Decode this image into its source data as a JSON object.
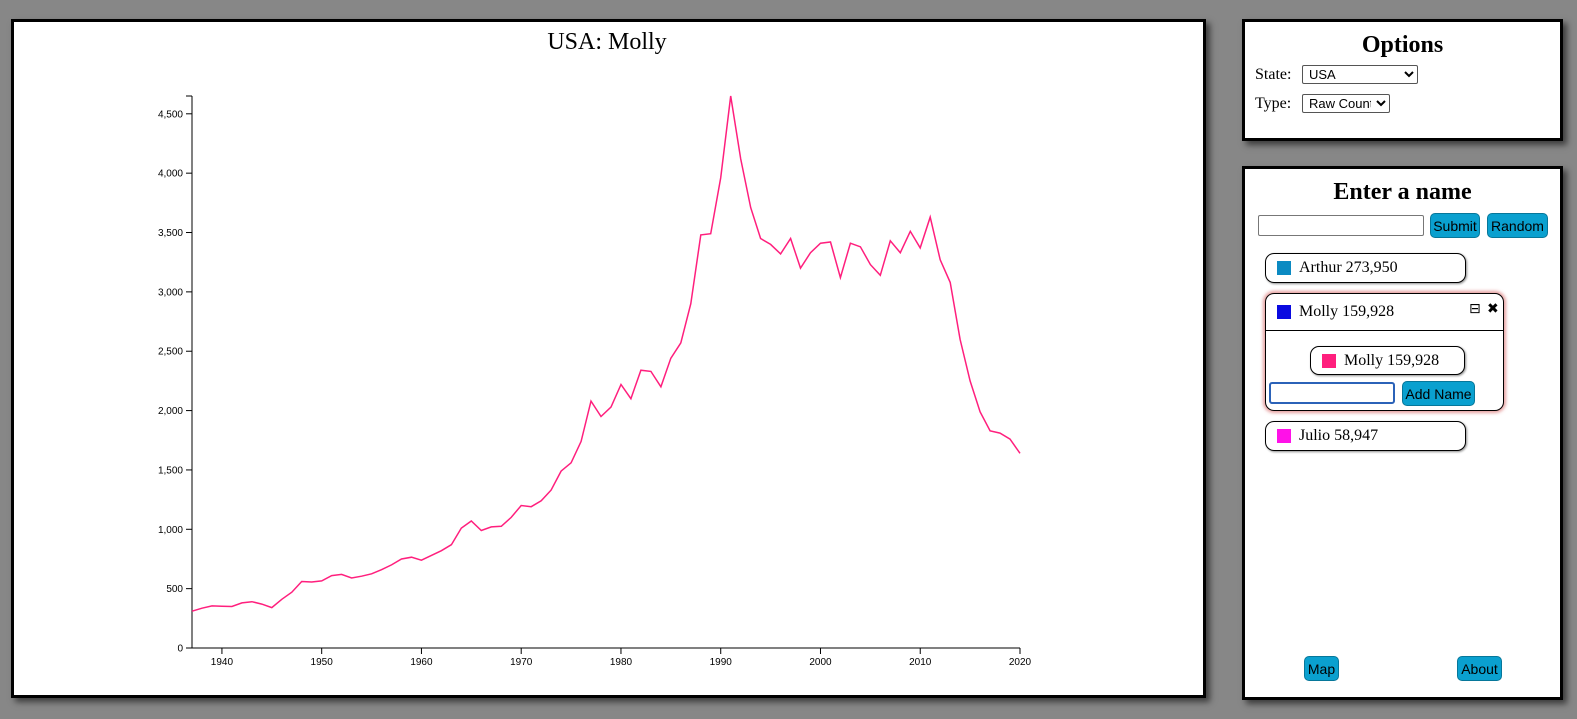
{
  "chart_data": {
    "type": "line",
    "title": "USA: Molly",
    "xlabel": "",
    "ylabel": "",
    "xlim": [
      1937,
      2020
    ],
    "ylim": [
      0,
      4650
    ],
    "x_ticks": [
      1940,
      1950,
      1960,
      1970,
      1980,
      1990,
      2000,
      2010,
      2020
    ],
    "y_ticks": [
      0,
      500,
      1000,
      1500,
      2000,
      2500,
      3000,
      3500,
      4000,
      4500
    ],
    "grid": false,
    "series": [
      {
        "color": "#ff1f7d",
        "x": [
          1937,
          1938,
          1939,
          1940,
          1941,
          1942,
          1943,
          1944,
          1945,
          1946,
          1947,
          1948,
          1949,
          1950,
          1951,
          1952,
          1953,
          1954,
          1955,
          1956,
          1957,
          1958,
          1959,
          1960,
          1961,
          1962,
          1963,
          1964,
          1965,
          1966,
          1967,
          1968,
          1969,
          1970,
          1971,
          1972,
          1973,
          1974,
          1975,
          1976,
          1977,
          1978,
          1979,
          1980,
          1981,
          1982,
          1983,
          1984,
          1985,
          1986,
          1987,
          1988,
          1989,
          1990,
          1991,
          1992,
          1993,
          1994,
          1995,
          1996,
          1997,
          1998,
          1999,
          2000,
          2001,
          2002,
          2003,
          2004,
          2005,
          2006,
          2007,
          2008,
          2009,
          2010,
          2011,
          2012,
          2013,
          2014,
          2015,
          2016,
          2017,
          2018,
          2019,
          2020
        ],
        "values": [
          310,
          335,
          355,
          352,
          350,
          380,
          390,
          370,
          340,
          410,
          470,
          560,
          556,
          565,
          610,
          620,
          590,
          605,
          625,
          660,
          700,
          750,
          765,
          740,
          780,
          820,
          870,
          1010,
          1070,
          990,
          1020,
          1025,
          1100,
          1200,
          1190,
          1240,
          1330,
          1490,
          1560,
          1740,
          2080,
          1950,
          2030,
          2220,
          2100,
          2340,
          2330,
          2200,
          2440,
          2570,
          2900,
          3480,
          3490,
          3960,
          4650,
          4120,
          3710,
          3450,
          3400,
          3320,
          3450,
          3200,
          3330,
          3410,
          3420,
          3120,
          3410,
          3380,
          3230,
          3140,
          3430,
          3330,
          3510,
          3370,
          3630,
          3270,
          3080,
          2600,
          2250,
          1990,
          1830,
          1810,
          1760,
          1640
        ]
      }
    ]
  },
  "options": {
    "title": "Options",
    "state_label": "State:",
    "state_value": "USA",
    "type_label": "Type:",
    "type_value": "Raw Count"
  },
  "names_panel": {
    "title": "Enter a name",
    "submit_label": "Submit",
    "random_label": "Random",
    "names": [
      {
        "label": "Arthur 273,950",
        "color": "#0b8ac2"
      },
      {
        "label": "Molly 159,928",
        "color": "#0a0ae0"
      },
      {
        "label": "Julio 58,947",
        "color": "#ff11e8"
      }
    ],
    "group": {
      "sub_names": [
        {
          "label": "Molly 159,928",
          "color": "#ff1f7d"
        }
      ],
      "add_name_label": "Add Name",
      "collapse_icon": "collapse-icon",
      "close_icon": "close-icon"
    },
    "map_label": "Map",
    "about_label": "About"
  }
}
